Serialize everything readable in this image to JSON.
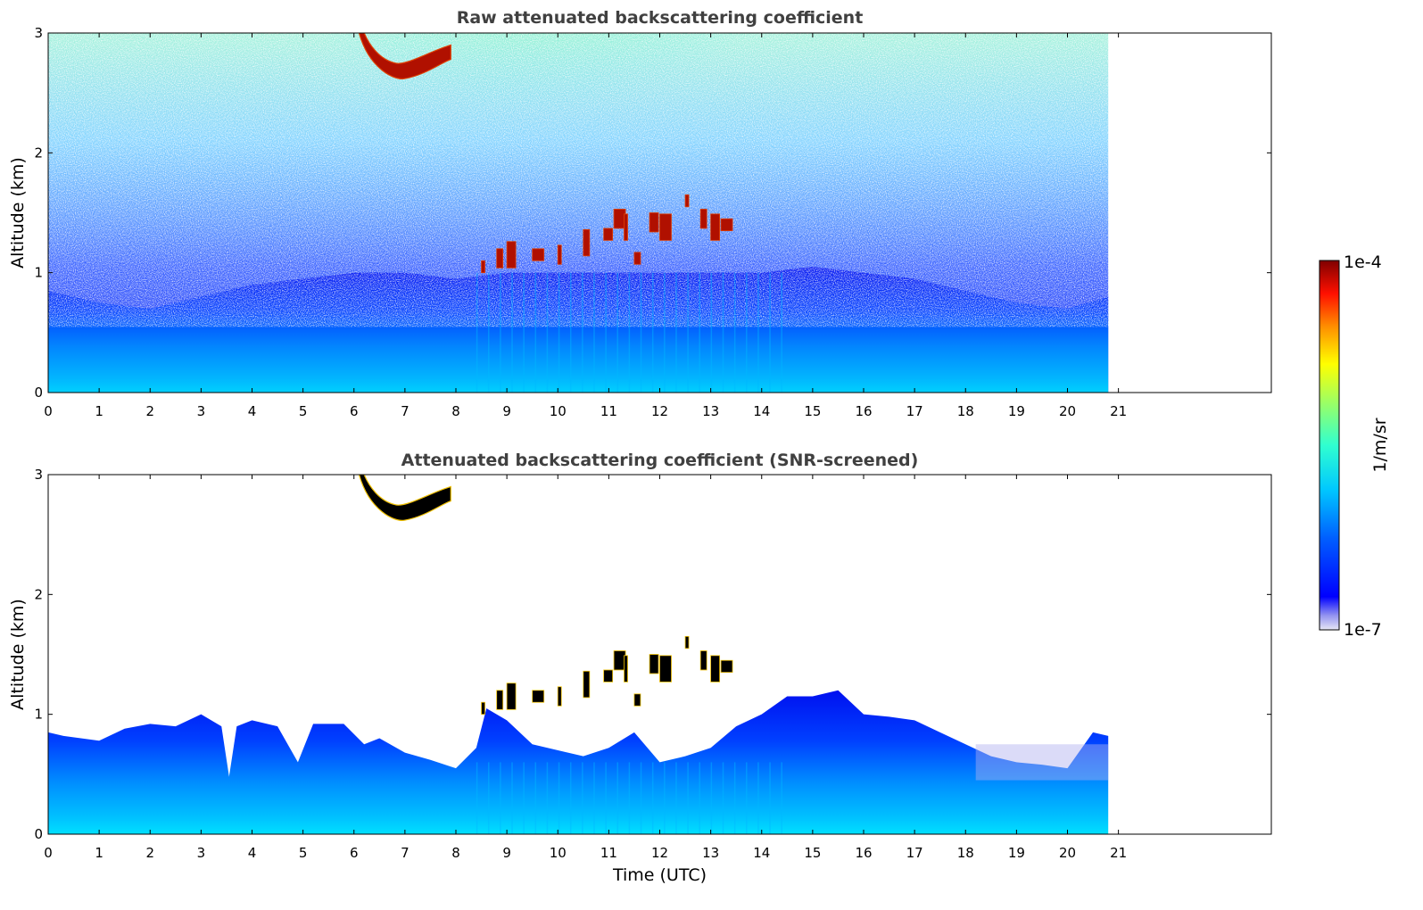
{
  "chart_data": [
    {
      "type": "heatmap",
      "title": "Raw attenuated backscattering coefficient",
      "xlabel": "",
      "ylabel": "Altitude (km)",
      "xlim": [
        0,
        24
      ],
      "ylim": [
        0,
        3
      ],
      "x_ticks": [
        "0",
        "1",
        "2",
        "3",
        "4",
        "5",
        "6",
        "7",
        "8",
        "9",
        "10",
        "11",
        "12",
        "13",
        "14",
        "15",
        "16",
        "17",
        "18",
        "19",
        "20",
        "21"
      ],
      "y_ticks": [
        "0",
        "1",
        "2",
        "3"
      ],
      "data_extent_hours": [
        0,
        20.8
      ],
      "features": [
        {
          "name": "cloud",
          "time_range": [
            6.1,
            7.9
          ],
          "altitude_km": [
            2.6,
            3.0
          ]
        },
        {
          "name": "cloud",
          "time_range": [
            8.4,
            13.3
          ],
          "altitude_km": [
            1.0,
            1.7
          ]
        },
        {
          "name": "boundary layer",
          "time_range": [
            0,
            20.8
          ],
          "altitude_km": [
            0,
            1.0
          ]
        }
      ],
      "grid": false
    },
    {
      "type": "heatmap",
      "title": "Attenuated backscattering coefficient (SNR-screened)",
      "xlabel": "Time (UTC)",
      "ylabel": "Altitude (km)",
      "xlim": [
        0,
        24
      ],
      "ylim": [
        0,
        3
      ],
      "x_ticks": [
        "0",
        "1",
        "2",
        "3",
        "4",
        "5",
        "6",
        "7",
        "8",
        "9",
        "10",
        "11",
        "12",
        "13",
        "14",
        "15",
        "16",
        "17",
        "18",
        "19",
        "20",
        "21"
      ],
      "y_ticks": [
        "0",
        "1",
        "2",
        "3"
      ],
      "data_extent_hours": [
        0,
        20.8
      ],
      "features": [
        {
          "name": "cloud",
          "time_range": [
            6.1,
            7.9
          ],
          "altitude_km": [
            2.6,
            3.0
          ]
        },
        {
          "name": "cloud",
          "time_range": [
            8.4,
            13.3
          ],
          "altitude_km": [
            1.0,
            1.7
          ]
        },
        {
          "name": "boundary layer",
          "time_range": [
            0,
            20.8
          ],
          "altitude_km": [
            0,
            1.2
          ]
        }
      ],
      "grid": false
    }
  ],
  "colorbar": {
    "label": "1/m/sr",
    "max_label": "1e-4",
    "min_label": "1e-7",
    "scale": "log",
    "colormap": "jet",
    "colors": [
      "#e6e6f5",
      "#0000ff",
      "#0080ff",
      "#00ffff",
      "#80ff80",
      "#ffff00",
      "#ff8000",
      "#ff0000",
      "#800000"
    ]
  },
  "colors": {
    "title_text": "#404040",
    "axis": "#000000",
    "cloud_dark": "#000000"
  }
}
